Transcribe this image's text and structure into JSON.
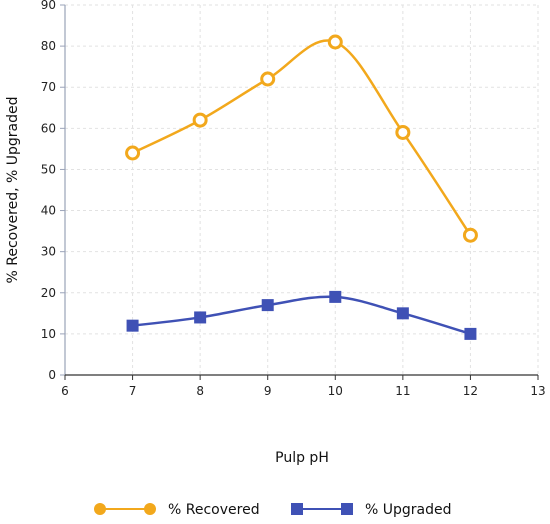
{
  "chart_data": {
    "type": "line",
    "title": "",
    "xlabel": "Pulp pH",
    "ylabel": "% Recovered, % Upgraded",
    "xlim": [
      6,
      13
    ],
    "ylim": [
      0,
      90
    ],
    "x_ticks": [
      6,
      7,
      8,
      9,
      10,
      11,
      12,
      13
    ],
    "y_ticks": [
      0,
      10,
      20,
      30,
      40,
      50,
      60,
      70,
      80,
      90
    ],
    "grid": true,
    "legend_position": "bottom",
    "series": [
      {
        "name": "% Recovered",
        "marker": "open-circle",
        "color": "#F2A81C",
        "x": [
          7,
          8,
          9,
          10,
          11,
          12
        ],
        "y": [
          54,
          62,
          72,
          81,
          59,
          34
        ]
      },
      {
        "name": "% Upgraded",
        "marker": "filled-square",
        "color": "#3F51B5",
        "x": [
          7,
          8,
          9,
          10,
          11,
          12
        ],
        "y": [
          12,
          14,
          17,
          19,
          15,
          10
        ]
      }
    ]
  }
}
